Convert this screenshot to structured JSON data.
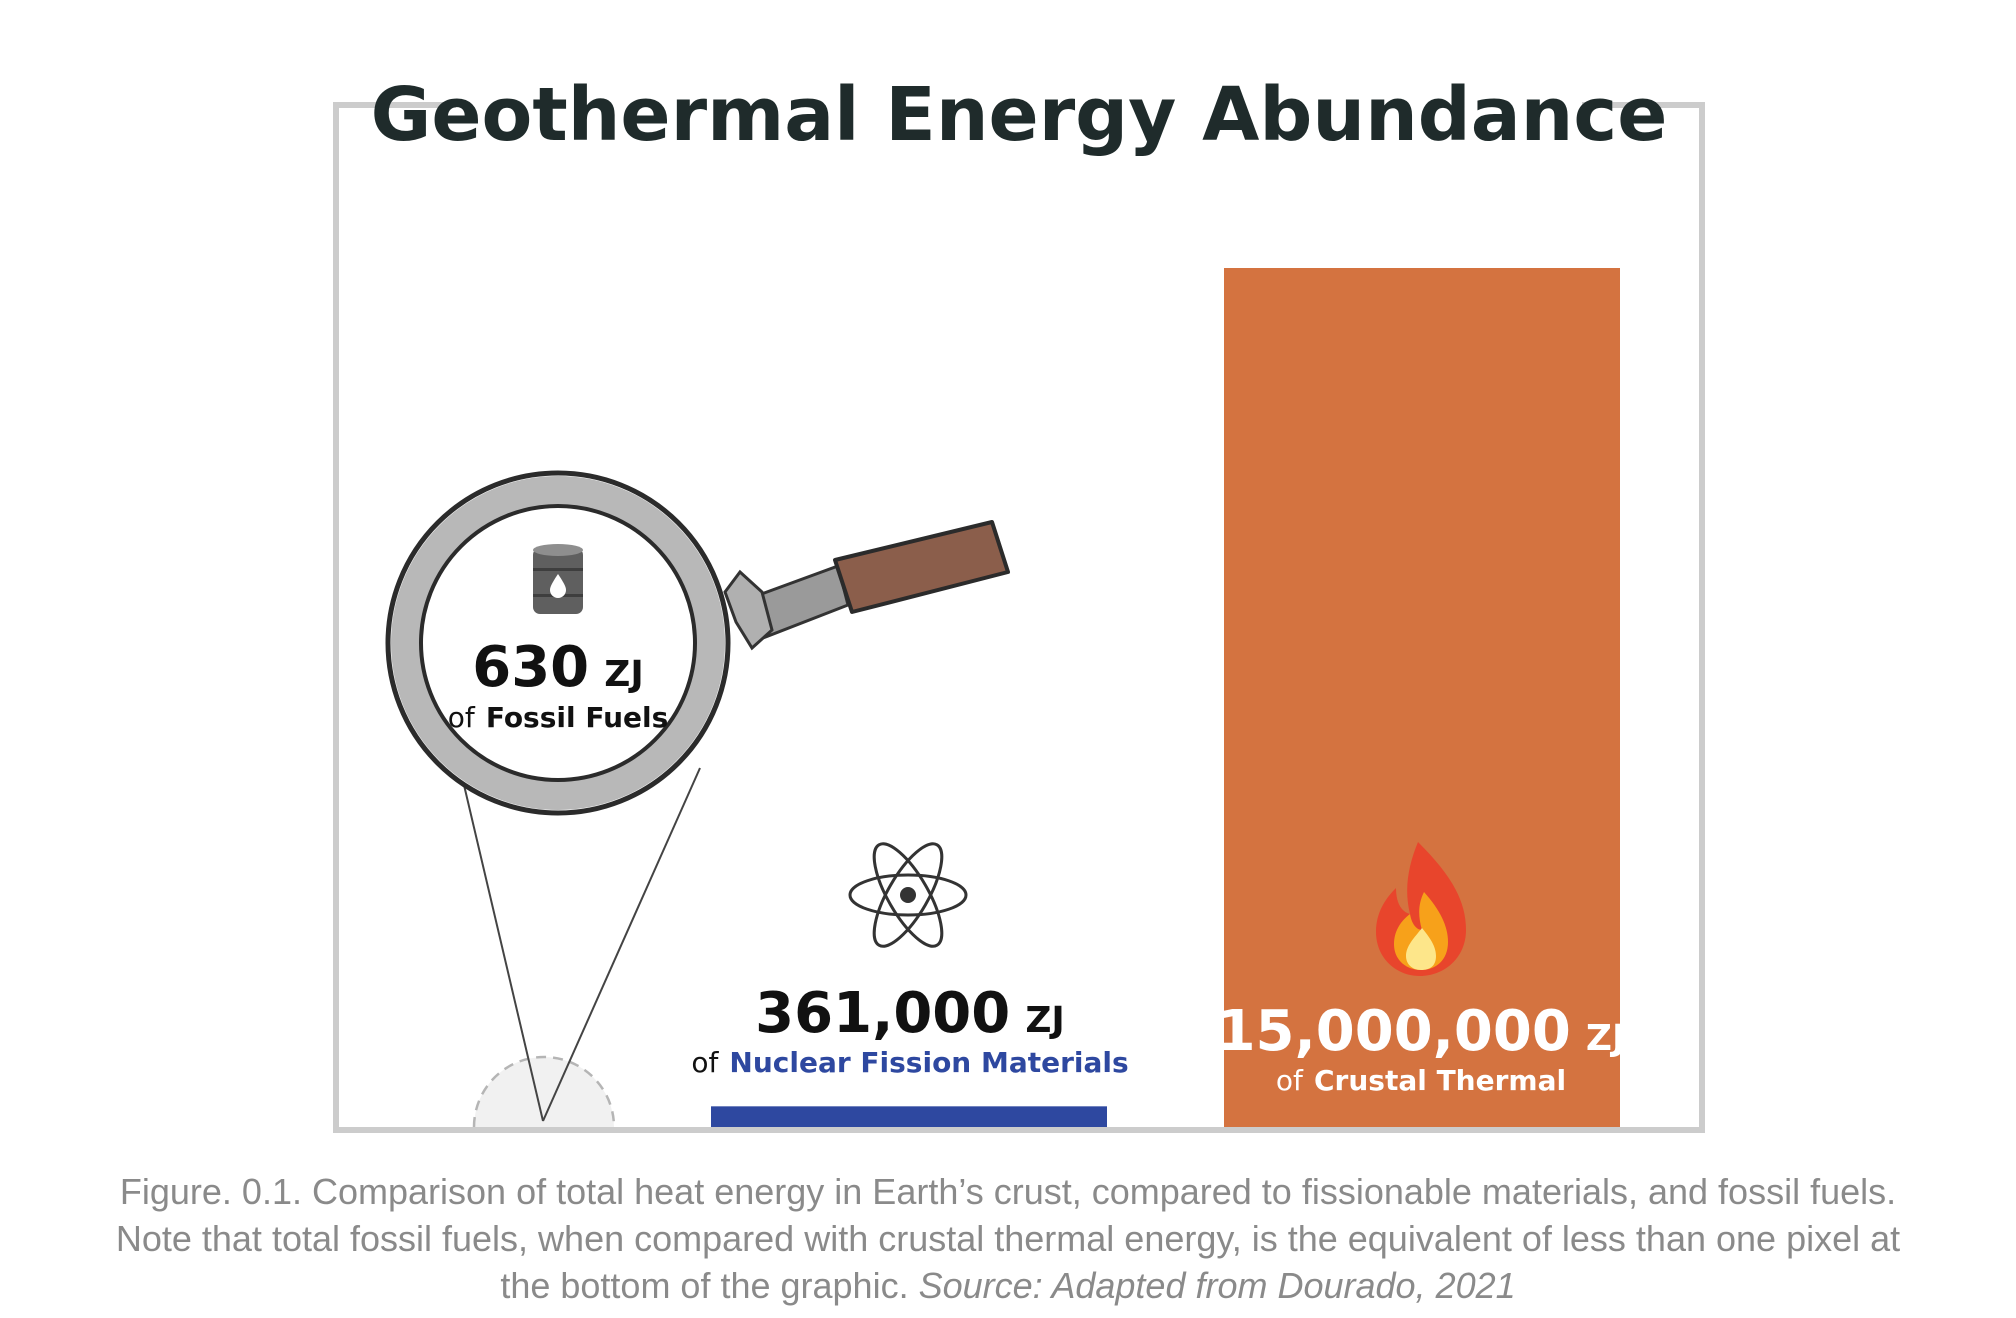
{
  "chart_data": {
    "type": "bar",
    "title": "Geothermal Energy Abundance",
    "categories": [
      "Fossil Fuels",
      "Nuclear Fission Materials",
      "Crustal Thermal"
    ],
    "values": [
      630,
      361000,
      15000000
    ],
    "unit": "ZJ",
    "labels": [
      {
        "value": "630",
        "unit": "ZJ",
        "prefix": "of",
        "name": "Fossil Fuels"
      },
      {
        "value": "361,000",
        "unit": "ZJ",
        "prefix": "of",
        "name": "Nuclear Fission Materials"
      },
      {
        "value": "15,000,000",
        "unit": "ZJ",
        "prefix": "of",
        "name": "Crustal Thermal"
      }
    ],
    "icons": [
      "oil-barrel-icon",
      "atom-icon",
      "fire-icon"
    ],
    "colors": {
      "fossil": "#f2c511",
      "nuclear": "#2e48a0",
      "crustal": "#d47340",
      "frame": "#cccccc"
    },
    "ylim": [
      0,
      15000000
    ],
    "grid": false,
    "legend": "none"
  },
  "caption": {
    "text": "Figure. 0.1. Comparison of total heat energy in Earth’s crust, compared to fissionable materials, and fossil fuels. Note that total fossil fuels, when compared with crustal thermal energy, is the equivalent of less than one pixel at the bottom of the graphic.",
    "source": "Source: Adapted from Dourado, 2021"
  }
}
